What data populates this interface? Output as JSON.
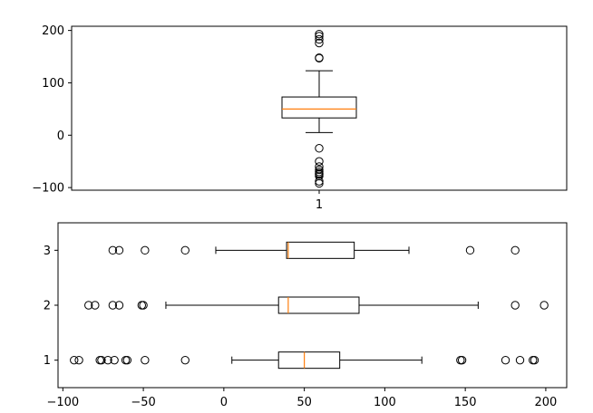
{
  "colors": {
    "median": "#ff7f0e",
    "frame": "#000000",
    "background": "#ffffff"
  },
  "chart_data": [
    {
      "type": "boxplot",
      "orientation": "vertical",
      "title": "",
      "xlabel": "",
      "ylabel": "",
      "ylim": [
        -105,
        208
      ],
      "yticks": [
        -100,
        0,
        100,
        200
      ],
      "ytick_labels": [
        "−100",
        "0",
        "100",
        "200"
      ],
      "xtick_labels": [
        "1"
      ],
      "boxes": [
        {
          "label": "1",
          "q1": 33,
          "median": 50,
          "q3": 73,
          "whisker_low": 5,
          "whisker_high": 123,
          "fliers": [
            193,
            189,
            183,
            176,
            148,
            147,
            -25,
            -50,
            -60,
            -66,
            -70,
            -73,
            -75,
            -78,
            -88,
            -92
          ]
        }
      ]
    },
    {
      "type": "boxplot",
      "orientation": "horizontal",
      "title": "",
      "xlabel": "",
      "ylabel": "",
      "xlim": [
        -103,
        213
      ],
      "xticks": [
        -100,
        -50,
        0,
        50,
        100,
        150,
        200
      ],
      "xtick_labels": [
        "−100",
        "−50",
        "0",
        "50",
        "100",
        "150",
        "200"
      ],
      "ytick_labels": [
        "1",
        "2",
        "3"
      ],
      "boxes": [
        {
          "label": "1",
          "q1": 34,
          "median": 50,
          "q3": 72,
          "whisker_low": 5,
          "whisker_high": 123,
          "fliers": [
            -93,
            -90,
            -77,
            -76,
            -72,
            -68,
            -61,
            -60,
            -49,
            -24,
            147,
            148,
            175,
            184,
            192,
            193
          ]
        },
        {
          "label": "2",
          "q1": 34,
          "median": 40,
          "q3": 84,
          "whisker_low": -36,
          "whisker_high": 158,
          "fliers": [
            -84,
            -80,
            -69,
            -65,
            -51,
            -50,
            181,
            199
          ]
        },
        {
          "label": "3",
          "q1": 39,
          "median": 40,
          "q3": 81,
          "whisker_low": -5,
          "whisker_high": 115,
          "fliers": [
            -69,
            -65,
            -49,
            -24,
            153,
            181
          ]
        }
      ]
    }
  ]
}
